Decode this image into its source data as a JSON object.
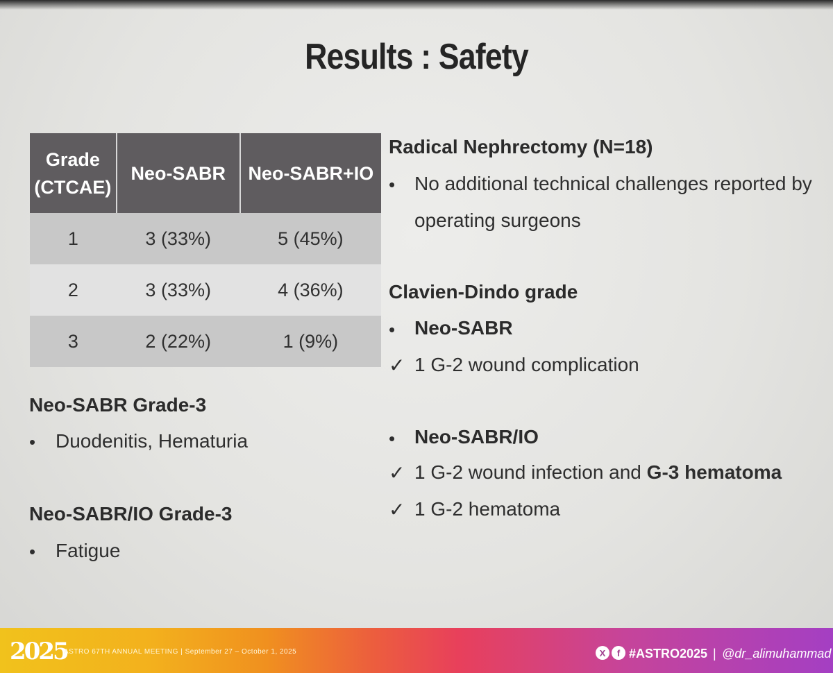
{
  "title": "Results : Safety",
  "table": {
    "headers": [
      "Grade (CTCAE)",
      "Neo-SABR",
      "Neo-SABR+IO"
    ],
    "header_lines": [
      [
        "Grade",
        "(CTCAE)"
      ],
      [
        "Neo-SABR"
      ],
      [
        "Neo-SABR+IO"
      ]
    ],
    "rows": [
      [
        "1",
        "3 (33%)",
        "5 (45%)"
      ],
      [
        "2",
        "3 (33%)",
        "4 (36%)"
      ],
      [
        "3",
        "2 (22%)",
        "1 (9%)"
      ]
    ]
  },
  "left_notes": {
    "neo_sabr_heading": "Neo-SABR Grade-3",
    "neo_sabr_item": "Duodenitis, Hematuria",
    "neo_sabr_io_heading": "Neo-SABR/IO Grade-3",
    "neo_sabr_io_item": "Fatigue"
  },
  "right_notes": {
    "nephrectomy_heading": "Radical Nephrectomy (N=18)",
    "nephrectomy_line1": "No additional technical challenges reported by",
    "nephrectomy_line2": "operating surgeons",
    "clavien_heading": "Clavien-Dindo grade",
    "neo_sabr_label": "Neo-SABR",
    "neo_sabr_check1": "1 G-2 wound complication",
    "neo_sabr_io_label": "Neo-SABR/IO",
    "neo_sabr_io_check1_prefix": "1 G-2 wound infection and ",
    "neo_sabr_io_check1_bold": "G-3 hematoma",
    "neo_sabr_io_check2": "1 G-2 hematoma"
  },
  "footer": {
    "logo": "2025",
    "meeting": "ASTRO 67TH ANNUAL MEETING  |  September 27 – October 1, 2025",
    "hashtag": "#ASTRO2025",
    "separator": "|",
    "handle": "@dr_alimuhammad"
  },
  "icons": {
    "bullet": "•",
    "check": "✓",
    "x_social": "X",
    "facebook": "f"
  },
  "colors": {
    "table_header": "#5f5c5f",
    "row_odd": "#c8c8c8",
    "row_even": "#e2e2e2"
  }
}
